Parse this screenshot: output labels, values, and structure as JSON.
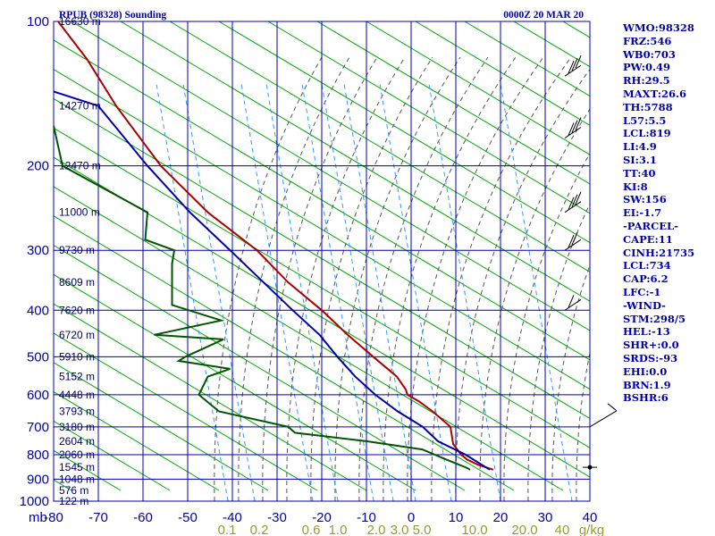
{
  "header": {
    "station": "RPUB (98328) Sounding",
    "time": "0000Z 20 MAR 20"
  },
  "side_panel": [
    "WMO:98328",
    "FRZ:546",
    "WB0:703",
    "PW:0.49",
    "RH:29.5",
    "MAXT:26.6",
    "TH:5788",
    "L57:5.5",
    "LCL:819",
    "LI:4.9",
    "SI:3.1",
    "TT:40",
    "KI:8",
    "SW:156",
    "EI:-1.7",
    "-PARCEL-",
    "CAPE:11",
    "CINH:21735",
    "LCL:734",
    "CAP:6.2",
    "LFC:-1",
    "-WIND-",
    "STM:298/5",
    "HEL:-13",
    "SHR+:0.0",
    "SRDS:-93",
    "EHI:0.0",
    "BRN:1.9",
    "BSHR:6"
  ],
  "colors": {
    "grid": "#0000aa",
    "dry_adiabat": "#00aa00",
    "moist_adiabat": "#555555",
    "mixing_ratio": "#3399ff",
    "temperature": "#aa0000",
    "dewpoint": "#005500",
    "parcel": "#0000aa",
    "wind": "#000000",
    "side_text": "#0000aa"
  },
  "chart_data": {
    "type": "skew-t",
    "title": "RPUB (98328) Sounding",
    "valid_time": "0000Z 20 MAR 20",
    "xlabel": "",
    "ylabel": "mb",
    "x_unit": "°C",
    "xlim": [
      -80,
      40
    ],
    "ylim": [
      1000,
      100
    ],
    "y_scale": "log",
    "grid": true,
    "pressure_ticks": [
      100,
      200,
      300,
      400,
      500,
      600,
      700,
      800,
      900,
      1000
    ],
    "pressure_tick_labels": [
      "100",
      "200",
      "300",
      "400",
      "500",
      "600",
      "700",
      "800",
      "900",
      "1000"
    ],
    "temp_ticks": [
      -80,
      -70,
      -60,
      -50,
      -40,
      -30,
      -20,
      -10,
      0,
      10,
      20,
      30,
      40
    ],
    "temp_tick_labels": [
      "-80",
      "-70",
      "-60",
      "-50",
      "-40",
      "-30",
      "-20",
      "-10",
      "0",
      "10",
      "20",
      "30",
      "40"
    ],
    "height_labels": [
      {
        "p": 100,
        "label": "16630 m"
      },
      {
        "p": 150,
        "label": "14270 m"
      },
      {
        "p": 200,
        "label": "12470 m"
      },
      {
        "p": 250,
        "label": "11000 m"
      },
      {
        "p": 300,
        "label": "9730 m"
      },
      {
        "p": 350,
        "label": "8609 m"
      },
      {
        "p": 400,
        "label": "7620 m"
      },
      {
        "p": 450,
        "label": "6720 m"
      },
      {
        "p": 500,
        "label": "5910 m"
      },
      {
        "p": 550,
        "label": "5152 m"
      },
      {
        "p": 600,
        "label": "4448 m"
      },
      {
        "p": 650,
        "label": "3793 m"
      },
      {
        "p": 700,
        "label": "3180 m"
      },
      {
        "p": 750,
        "label": "2604 m"
      },
      {
        "p": 800,
        "label": "2060 m"
      },
      {
        "p": 850,
        "label": "1545 m"
      },
      {
        "p": 900,
        "label": "1048 m"
      },
      {
        "p": 950,
        "label": "576 m"
      },
      {
        "p": 1000,
        "label": "122 m"
      }
    ],
    "mixing_ratio_labels": [
      "0.1",
      "0.2",
      "0.6",
      "1.0",
      "2.0",
      "3.0",
      "5.0",
      "10.0",
      "20.0",
      "40",
      "g/kg"
    ],
    "series": [
      {
        "key": "temperature",
        "points": [
          [
            860,
            18.4
          ],
          [
            840,
            15
          ],
          [
            820,
            12.6
          ],
          [
            800,
            11.2
          ],
          [
            760,
            9.4
          ],
          [
            700,
            8.8
          ],
          [
            650,
            4.8
          ],
          [
            620,
            1.8
          ],
          [
            600,
            -0.8
          ],
          [
            585,
            -1.2
          ],
          [
            550,
            -3.2
          ],
          [
            500,
            -8.5
          ],
          [
            450,
            -14.2
          ],
          [
            400,
            -20
          ],
          [
            350,
            -27.5
          ],
          [
            300,
            -34.5
          ],
          [
            250,
            -45.5
          ],
          [
            200,
            -56
          ],
          [
            150,
            -66
          ],
          [
            120,
            -72.5
          ],
          [
            100,
            -79
          ]
        ]
      },
      {
        "key": "dewpoint",
        "points": [
          [
            860,
            13.2
          ],
          [
            850,
            12.2
          ],
          [
            820,
            8
          ],
          [
            780,
            2.5
          ],
          [
            750,
            -10
          ],
          [
            720,
            -26
          ],
          [
            700,
            -27.5
          ],
          [
            650,
            -43
          ],
          [
            600,
            -47.5
          ],
          [
            550,
            -45.5
          ],
          [
            530,
            -40.5
          ],
          [
            510,
            -52
          ],
          [
            500,
            -50.5
          ],
          [
            460,
            -42
          ],
          [
            450,
            -57.5
          ],
          [
            420,
            -42.5
          ],
          [
            390,
            -53.5
          ],
          [
            320,
            -53.5
          ],
          [
            300,
            -53
          ],
          [
            285,
            -59.5
          ],
          [
            250,
            -59
          ],
          [
            200,
            -78
          ],
          [
            165,
            -80
          ]
        ]
      },
      {
        "key": "parcel",
        "points": [
          [
            860,
            17.6
          ],
          [
            800,
            12.2
          ],
          [
            750,
            6
          ],
          [
            700,
            2.6
          ],
          [
            650,
            -3
          ],
          [
            600,
            -8
          ],
          [
            550,
            -12.5
          ],
          [
            500,
            -16.5
          ],
          [
            450,
            -20.5
          ],
          [
            400,
            -26.5
          ],
          [
            350,
            -33
          ],
          [
            300,
            -40.5
          ],
          [
            250,
            -49.5
          ],
          [
            200,
            -59
          ],
          [
            150,
            -70
          ],
          [
            140,
            -80
          ]
        ]
      }
    ],
    "wind_barbs": [
      {
        "p": 850,
        "speed_kt": 0,
        "direction": "calm"
      },
      {
        "p": 700,
        "speed_kt": 10,
        "direction": "NE"
      },
      {
        "p": 400,
        "speed_kt": 10,
        "direction": "W"
      },
      {
        "p": 300,
        "speed_kt": 15,
        "direction": "W"
      },
      {
        "p": 250,
        "speed_kt": 25,
        "direction": "W"
      },
      {
        "p": 175,
        "speed_kt": 30,
        "direction": "W"
      },
      {
        "p": 130,
        "speed_kt": 30,
        "direction": "W"
      }
    ]
  }
}
